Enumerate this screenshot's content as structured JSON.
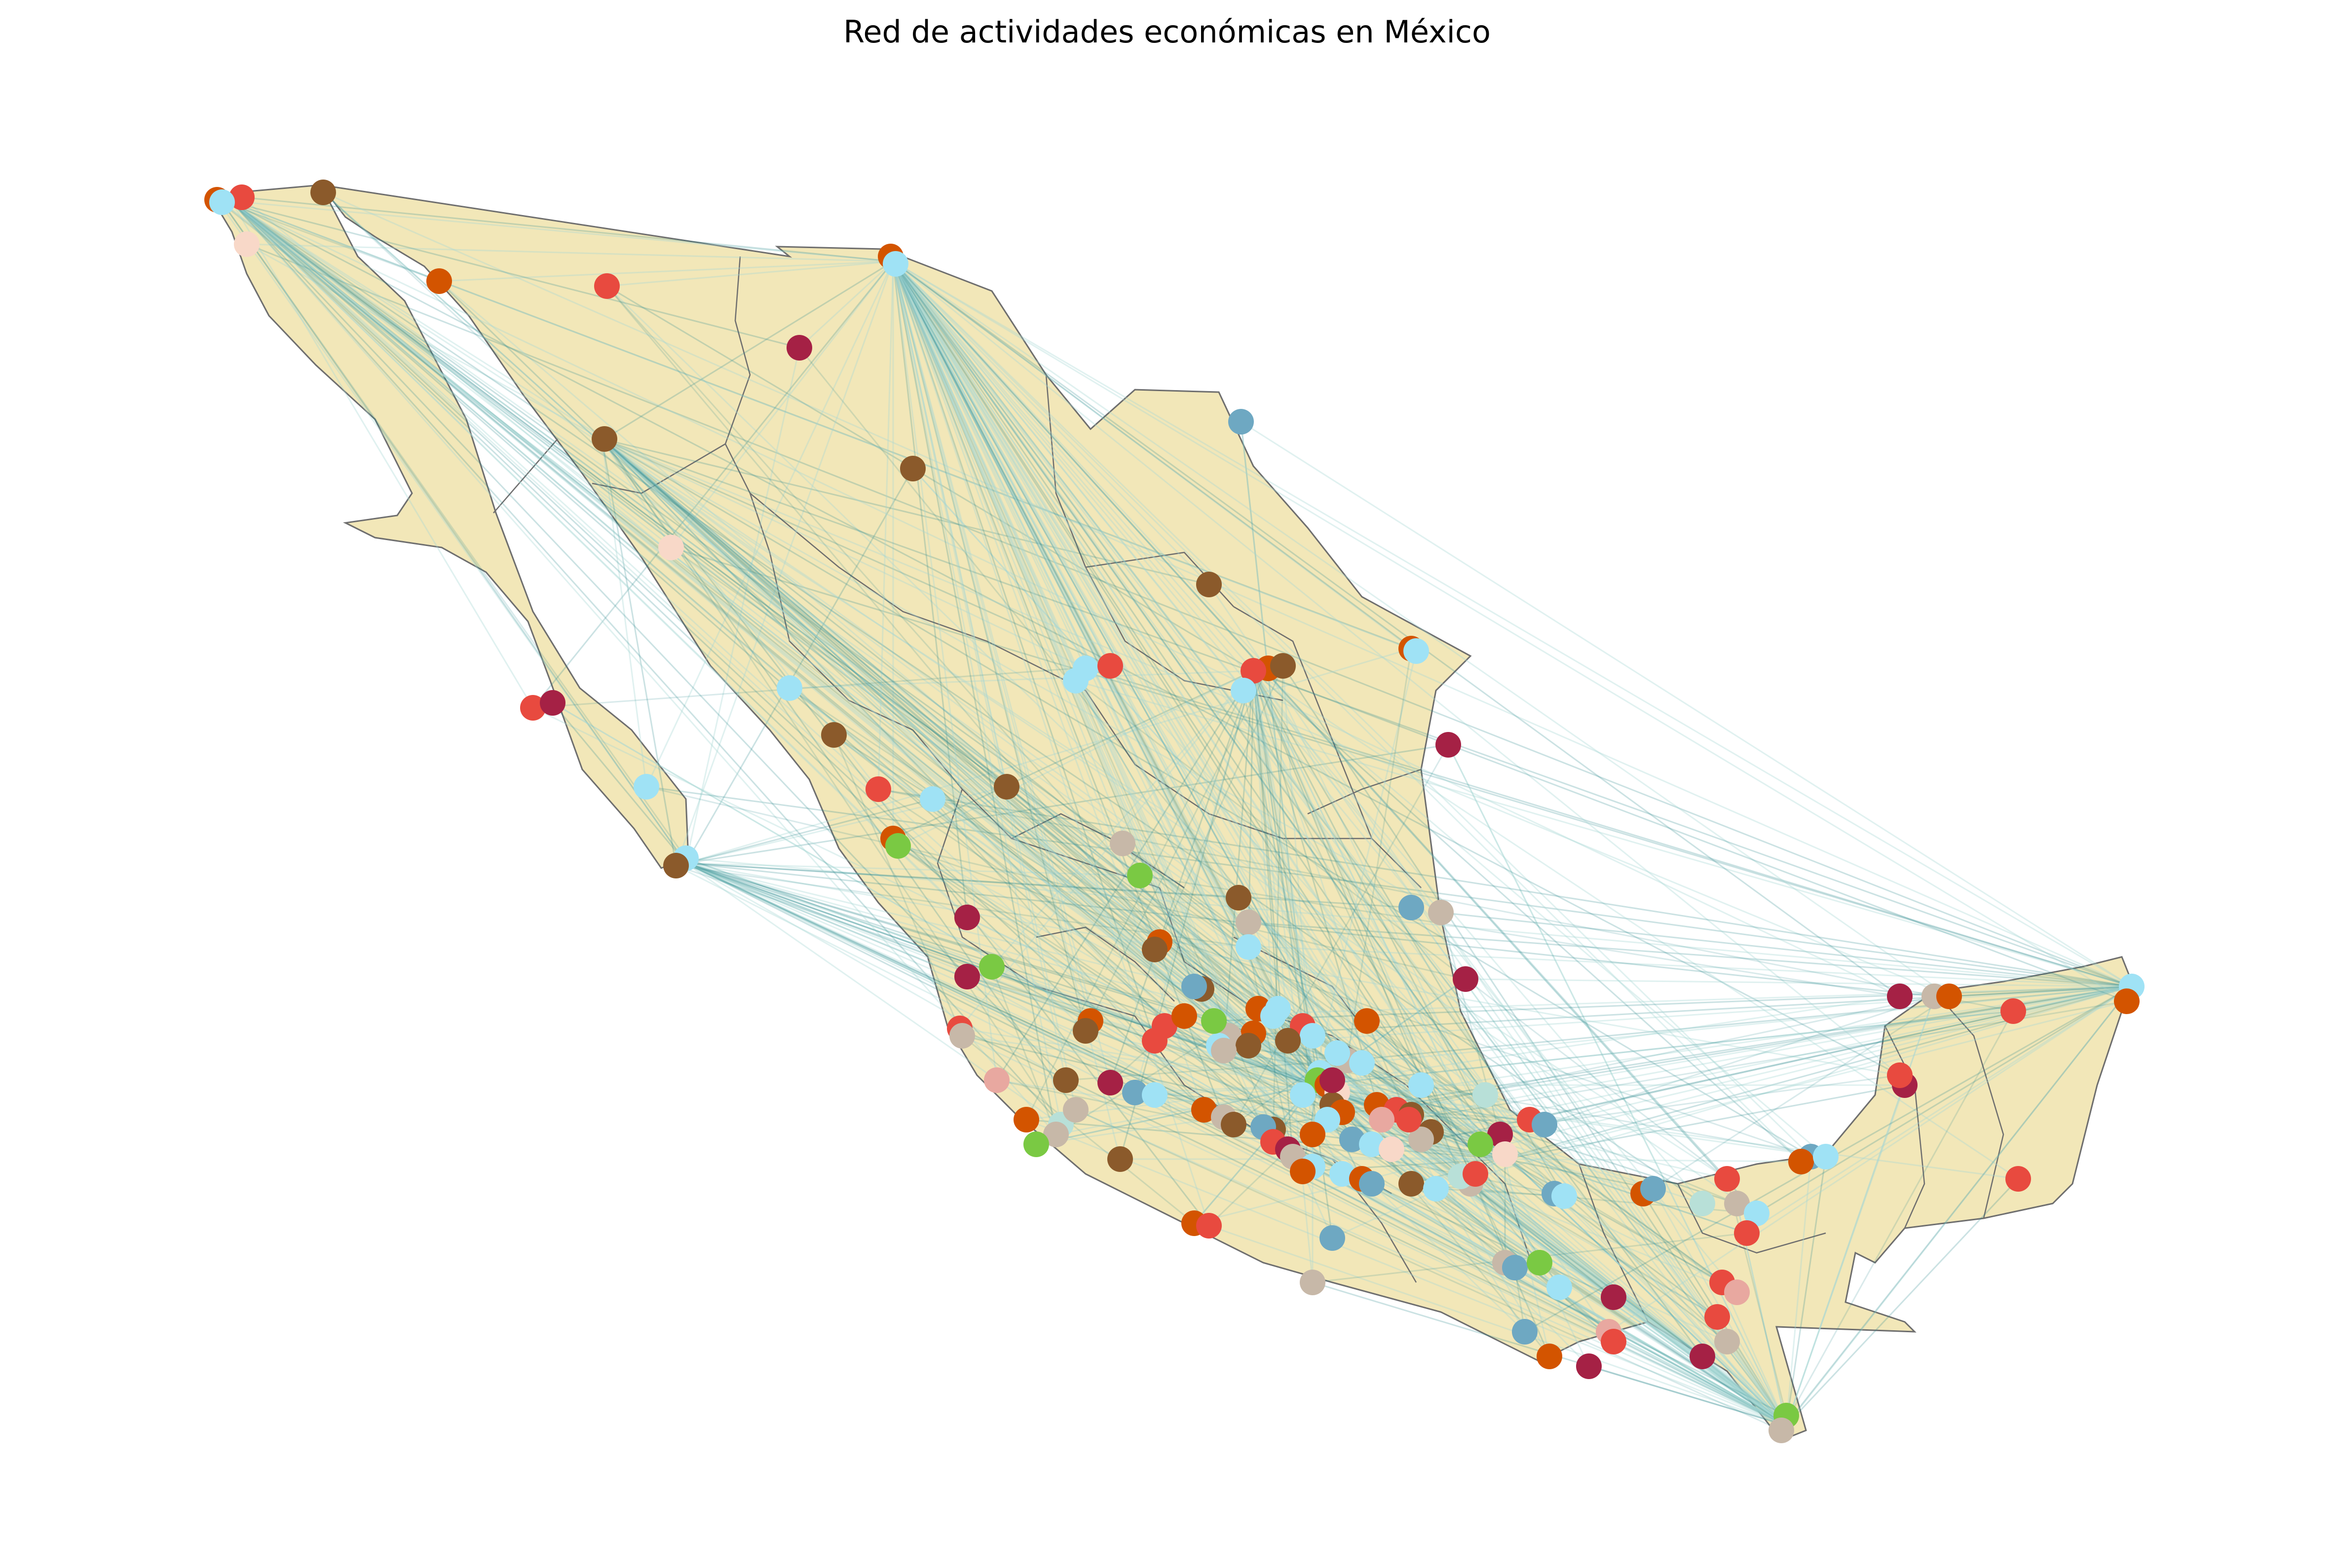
{
  "title": "Red de actividades económicas en México",
  "colors": {
    "land_fill": "#f2e7b8",
    "border": "#6e6e6e",
    "edge": "#2f8a90",
    "edge_light": "#a6d6d4",
    "palette": [
      "#d35400",
      "#e84a3f",
      "#8b5a2b",
      "#9fe2f5",
      "#a52145",
      "#6ea8c2",
      "#c7b8a8",
      "#7ac943",
      "#f8d8c8",
      "#b8e0d8",
      "#e8a8a0"
    ]
  },
  "map": {
    "region": "Mexico",
    "node_count_approx": 190
  }
}
